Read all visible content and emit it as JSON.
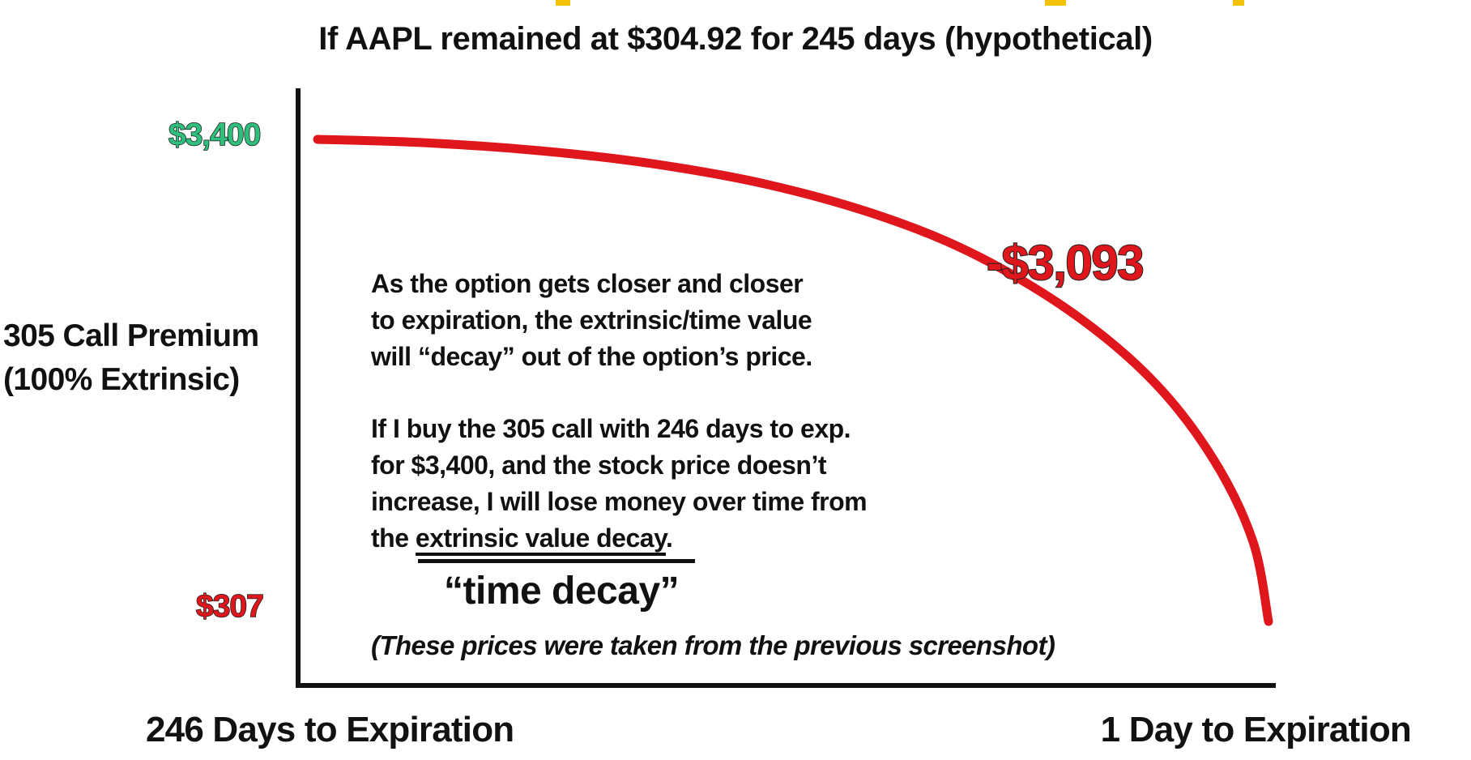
{
  "colors": {
    "curve": "#e0161d",
    "max_value": "#2fbf7c",
    "min_value": "#e0161d",
    "loss": "#e0161d",
    "axis": "#111111",
    "header_accent": "#f2c200"
  },
  "chart": {
    "subtitle": "If AAPL remained at $304.92 for 245 days (hypothetical)",
    "ylabel": "305 Call Premium\n(100% Extrinsic)",
    "xlabel_start": "246 Days to Expiration",
    "xlabel_end": "1 Day to Expiration",
    "tick_max": "$3,400",
    "tick_min": "$307",
    "loss_label": "-$3,093",
    "explanation": {
      "para1": "As the option gets closer and closer\nto expiration, the extrinsic/time value\nwill “decay” out of the option’s price.",
      "para2_lead": "If I buy the 305 call with 246 days to exp.\nfor $3,400, and the stock price doesn’t\nincrease, I will lose money over time from\nthe ",
      "para2_underlined": "extrinsic value decay",
      "para2_tail": "."
    },
    "callout": "“time decay”",
    "note": "(These prices were taken from the previous screenshot)"
  },
  "chart_data": {
    "type": "line",
    "title": "If AAPL remained at $304.92 for 245 days (hypothetical)",
    "xlabel": "",
    "ylabel": "305 Call Premium (100% Extrinsic)",
    "x_tick_labels": [
      "246 Days to Expiration",
      "1 Day to Expiration"
    ],
    "y_tick_labels": [
      "$3,400",
      "$307"
    ],
    "series": [
      {
        "x": [
          246,
          220,
          190,
          160,
          130,
          100,
          75,
          50,
          30,
          15,
          5,
          1
        ],
        "y": [
          3400,
          3380,
          3330,
          3245,
          3110,
          2900,
          2640,
          2260,
          1830,
          1340,
          820,
          307
        ]
      }
    ],
    "xlim": [
      246,
      1
    ],
    "ylim": [
      307,
      3400
    ],
    "grid": false,
    "annotations": [
      "-$3,093",
      "“time decay”"
    ]
  }
}
